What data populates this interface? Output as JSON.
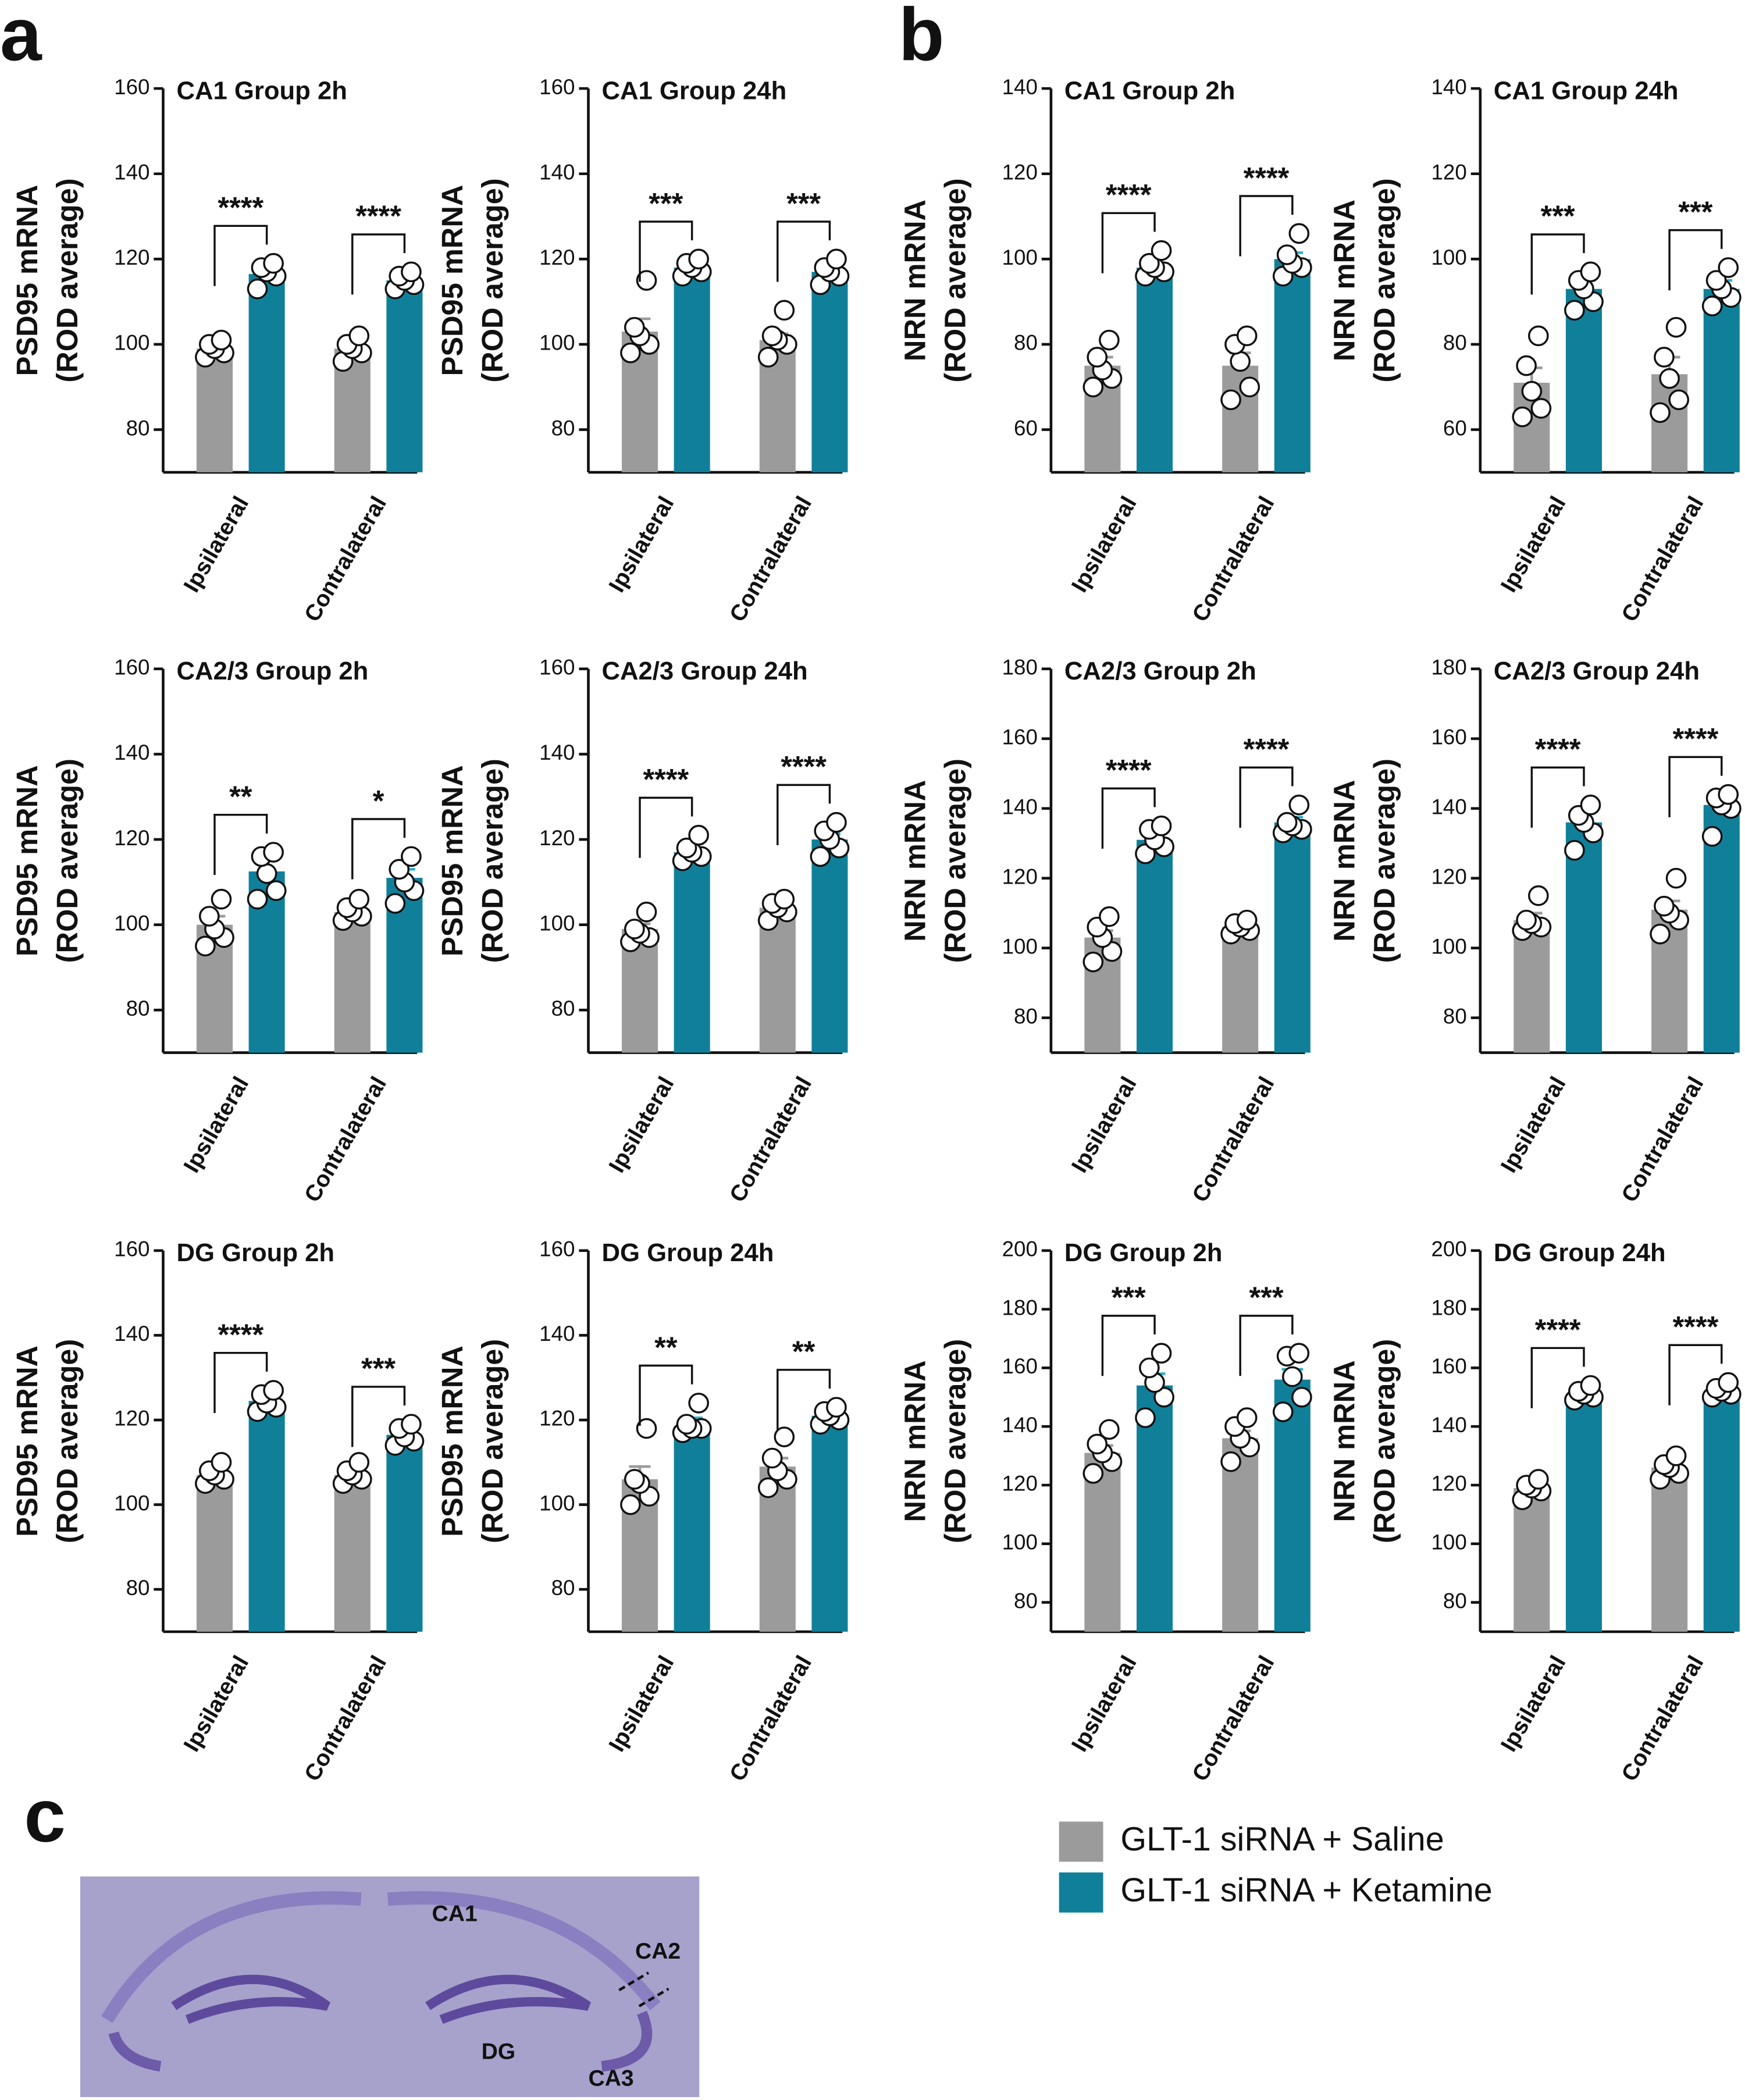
{
  "panel_labels": [
    "a",
    "b",
    "c"
  ],
  "legend": [
    {
      "name": "GLT-1 siRNA + Saline",
      "color": "#9b9b9b"
    },
    {
      "name": "GLT-1 siRNA + Ketamine",
      "color": "#10809a"
    }
  ],
  "image_labels": [
    "CA1",
    "CA2",
    "DG",
    "CA3"
  ],
  "chart_data": [
    {
      "type": "bar",
      "title": "CA1 Group 2h",
      "ylabel": [
        "PSD95 mRNA",
        "(ROD average)"
      ],
      "categories": [
        "Ipsilateral",
        "Contralateral"
      ],
      "series": [
        {
          "values": [
            99,
            99
          ],
          "errors": [
            1,
            1
          ],
          "points": [
            [
              97,
              98,
              99,
              100,
              101
            ],
            [
              96,
              98,
              99,
              100,
              102
            ]
          ]
        },
        {
          "values": [
            116.5,
            115
          ],
          "errors": [
            1.5,
            1
          ],
          "points": [
            [
              113,
              116,
              117,
              118,
              119
            ],
            [
              113,
              114,
              115,
              116,
              117
            ]
          ]
        }
      ],
      "annotations": [
        "****",
        "****"
      ],
      "ylim": [
        70,
        160
      ],
      "yticks": [
        80,
        100,
        120,
        140,
        160
      ]
    },
    {
      "type": "bar",
      "title": "CA1 Group 24h",
      "ylabel": [
        "PSD95 mRNA",
        "(ROD average)"
      ],
      "categories": [
        "Ipsilateral",
        "Contralateral"
      ],
      "series": [
        {
          "values": [
            103,
            101
          ],
          "errors": [
            3,
            1.5
          ],
          "points": [
            [
              98,
              100,
              102,
              104,
              115
            ],
            [
              97,
              100,
              101,
              102,
              108
            ]
          ]
        },
        {
          "values": [
            118,
            117
          ],
          "errors": [
            0.8,
            1
          ],
          "points": [
            [
              116,
              117,
              118,
              119,
              120
            ],
            [
              114,
              116,
              117,
              118,
              120
            ]
          ]
        }
      ],
      "annotations": [
        "***",
        "***"
      ],
      "ylim": [
        70,
        160
      ],
      "yticks": [
        80,
        100,
        120,
        140,
        160
      ]
    },
    {
      "type": "bar",
      "title": "CA2/3 Group 2h",
      "ylabel": [
        "PSD95 mRNA",
        "(ROD average)"
      ],
      "categories": [
        "Ipsilateral",
        "Contralateral"
      ],
      "series": [
        {
          "values": [
            100,
            103
          ],
          "errors": [
            2,
            1
          ],
          "points": [
            [
              95,
              97,
              99,
              102,
              106
            ],
            [
              101,
              102,
              103,
              104,
              106
            ]
          ]
        },
        {
          "values": [
            112.5,
            111
          ],
          "errors": [
            2.5,
            2
          ],
          "points": [
            [
              106,
              108,
              112,
              116,
              117
            ],
            [
              105,
              108,
              110,
              113,
              116
            ]
          ]
        }
      ],
      "annotations": [
        "**",
        "*"
      ],
      "ylim": [
        70,
        160
      ],
      "yticks": [
        80,
        100,
        120,
        140,
        160
      ]
    },
    {
      "type": "bar",
      "title": "CA2/3 Group 24h",
      "ylabel": [
        "PSD95 mRNA",
        "(ROD average)"
      ],
      "categories": [
        "Ipsilateral",
        "Contralateral"
      ],
      "series": [
        {
          "values": [
            99,
            104
          ],
          "errors": [
            1.2,
            1.2
          ],
          "points": [
            [
              96,
              97,
              98,
              99,
              103
            ],
            [
              101,
              103,
              104,
              105,
              106
            ]
          ]
        },
        {
          "values": [
            117,
            120
          ],
          "errors": [
            1,
            1.3
          ],
          "points": [
            [
              115,
              116,
              117,
              118,
              121
            ],
            [
              116,
              118,
              120,
              122,
              124
            ]
          ]
        }
      ],
      "annotations": [
        "****",
        "****"
      ],
      "ylim": [
        70,
        160
      ],
      "yticks": [
        80,
        100,
        120,
        140,
        160
      ]
    },
    {
      "type": "bar",
      "title": "DG Group 2h",
      "ylabel": [
        "PSD95 mRNA",
        "(ROD average)"
      ],
      "categories": [
        "Ipsilateral",
        "Contralateral"
      ],
      "series": [
        {
          "values": [
            107,
            107
          ],
          "errors": [
            1,
            1
          ],
          "points": [
            [
              105,
              106,
              107,
              108,
              110
            ],
            [
              105,
              106,
              107,
              108,
              110
            ]
          ]
        },
        {
          "values": [
            124.5,
            116.5
          ],
          "errors": [
            1,
            1
          ],
          "points": [
            [
              122,
              123,
              124,
              126,
              127
            ],
            [
              114,
              115,
              116,
              118,
              119
            ]
          ]
        }
      ],
      "annotations": [
        "****",
        "***"
      ],
      "ylim": [
        70,
        160
      ],
      "yticks": [
        80,
        100,
        120,
        140,
        160
      ]
    },
    {
      "type": "bar",
      "title": "DG Group 24h",
      "ylabel": [
        "PSD95 mRNA",
        "(ROD average)"
      ],
      "categories": [
        "Ipsilateral",
        "Contralateral"
      ],
      "series": [
        {
          "values": [
            106,
            109
          ],
          "errors": [
            3,
            2
          ],
          "points": [
            [
              100,
              102,
              105,
              106,
              118
            ],
            [
              104,
              106,
              108,
              111,
              116
            ]
          ]
        },
        {
          "values": [
            118.5,
            121
          ],
          "errors": [
            2,
            0.7
          ],
          "points": [
            [
              117,
              118,
              118,
              119,
              124
            ],
            [
              119,
              120,
              121,
              122,
              123
            ]
          ]
        }
      ],
      "annotations": [
        "**",
        "**"
      ],
      "ylim": [
        70,
        160
      ],
      "yticks": [
        80,
        100,
        120,
        140,
        160
      ]
    },
    {
      "type": "bar",
      "title": "CA1 Group 2h",
      "ylabel": [
        "NRN mRNA",
        "(ROD average)"
      ],
      "categories": [
        "Ipsilateral",
        "Contralateral"
      ],
      "series": [
        {
          "values": [
            75,
            75
          ],
          "errors": [
            2,
            3
          ],
          "points": [
            [
              70,
              72,
              74,
              77,
              81
            ],
            [
              67,
              70,
              76,
              80,
              82
            ]
          ]
        },
        {
          "values": [
            98,
            100
          ],
          "errors": [
            1,
            1.5
          ],
          "points": [
            [
              96,
              97,
              98,
              99,
              102
            ],
            [
              96,
              98,
              99,
              101,
              106
            ]
          ]
        }
      ],
      "annotations": [
        "****",
        "****"
      ],
      "ylim": [
        50,
        140
      ],
      "yticks": [
        60,
        80,
        100,
        120,
        140
      ]
    },
    {
      "type": "bar",
      "title": "CA1 Group 24h",
      "ylabel": [
        "NRN mRNA",
        "(ROD average)"
      ],
      "categories": [
        "Ipsilateral",
        "Contralateral"
      ],
      "series": [
        {
          "values": [
            71,
            73
          ],
          "errors": [
            3.5,
            4
          ],
          "points": [
            [
              63,
              65,
              69,
              75,
              82
            ],
            [
              64,
              67,
              72,
              77,
              84
            ]
          ]
        },
        {
          "values": [
            93,
            93
          ],
          "errors": [
            2,
            2
          ],
          "points": [
            [
              88,
              90,
              93,
              95,
              97
            ],
            [
              89,
              91,
              93,
              95,
              98
            ]
          ]
        }
      ],
      "annotations": [
        "***",
        "***"
      ],
      "ylim": [
        50,
        140
      ],
      "yticks": [
        60,
        80,
        100,
        120,
        140
      ]
    },
    {
      "type": "bar",
      "title": "CA2/3 Group 2h",
      "ylabel": [
        "NRN mRNA",
        "(ROD average)"
      ],
      "categories": [
        "Ipsilateral",
        "Contralateral"
      ],
      "series": [
        {
          "values": [
            103,
            106
          ],
          "errors": [
            2,
            1
          ],
          "points": [
            [
              96,
              99,
              103,
              106,
              109
            ],
            [
              104,
              105,
              106,
              107,
              108
            ]
          ]
        },
        {
          "values": [
            131,
            136
          ],
          "errors": [
            1.5,
            1.5
          ],
          "points": [
            [
              127,
              129,
              131,
              134,
              135
            ],
            [
              133,
              134,
              135,
              136,
              141
            ]
          ]
        }
      ],
      "annotations": [
        "****",
        "****"
      ],
      "ylim": [
        70,
        180
      ],
      "yticks": [
        80,
        100,
        120,
        140,
        160,
        180
      ]
    },
    {
      "type": "bar",
      "title": "CA2/3 Group 24h",
      "ylabel": [
        "NRN mRNA",
        "(ROD average)"
      ],
      "categories": [
        "Ipsilateral",
        "Contralateral"
      ],
      "series": [
        {
          "values": [
            108,
            111
          ],
          "errors": [
            2,
            2.5
          ],
          "points": [
            [
              105,
              106,
              107,
              108,
              115
            ],
            [
              104,
              108,
              110,
              112,
              120
            ]
          ]
        },
        {
          "values": [
            136,
            141
          ],
          "errors": [
            2.5,
            2.5
          ],
          "points": [
            [
              128,
              133,
              136,
              138,
              141
            ],
            [
              132,
              140,
              141,
              143,
              144
            ]
          ]
        }
      ],
      "annotations": [
        "****",
        "****"
      ],
      "ylim": [
        70,
        180
      ],
      "yticks": [
        80,
        100,
        120,
        140,
        160,
        180
      ]
    },
    {
      "type": "bar",
      "title": "DG Group 2h",
      "ylabel": [
        "NRN mRNA",
        "(ROD average)"
      ],
      "categories": [
        "Ipsilateral",
        "Contralateral"
      ],
      "series": [
        {
          "values": [
            131,
            136
          ],
          "errors": [
            2.5,
            2.5
          ],
          "points": [
            [
              124,
              128,
              131,
              134,
              139
            ],
            [
              128,
              133,
              136,
              140,
              143
            ]
          ]
        },
        {
          "values": [
            154,
            156
          ],
          "errors": [
            4,
            3.5
          ],
          "points": [
            [
              143,
              150,
              155,
              160,
              165
            ],
            [
              145,
              150,
              157,
              164,
              165
            ]
          ]
        }
      ],
      "annotations": [
        "***",
        "***"
      ],
      "ylim": [
        70,
        200
      ],
      "yticks": [
        80,
        100,
        120,
        140,
        160,
        180,
        200
      ]
    },
    {
      "type": "bar",
      "title": "DG Group 24h",
      "ylabel": [
        "NRN mRNA",
        "(ROD average)"
      ],
      "categories": [
        "Ipsilateral",
        "Contralateral"
      ],
      "series": [
        {
          "values": [
            119,
            126
          ],
          "errors": [
            1.5,
            1.5
          ],
          "points": [
            [
              115,
              118,
              119,
              120,
              122
            ],
            [
              122,
              124,
              126,
              127,
              130
            ]
          ]
        },
        {
          "values": [
            151,
            152
          ],
          "errors": [
            1,
            1
          ],
          "points": [
            [
              149,
              150,
              151,
              152,
              154
            ],
            [
              150,
              151,
              152,
              153,
              155
            ]
          ]
        }
      ],
      "annotations": [
        "****",
        "****"
      ],
      "ylim": [
        70,
        200
      ],
      "yticks": [
        80,
        100,
        120,
        140,
        160,
        180,
        200
      ]
    }
  ]
}
